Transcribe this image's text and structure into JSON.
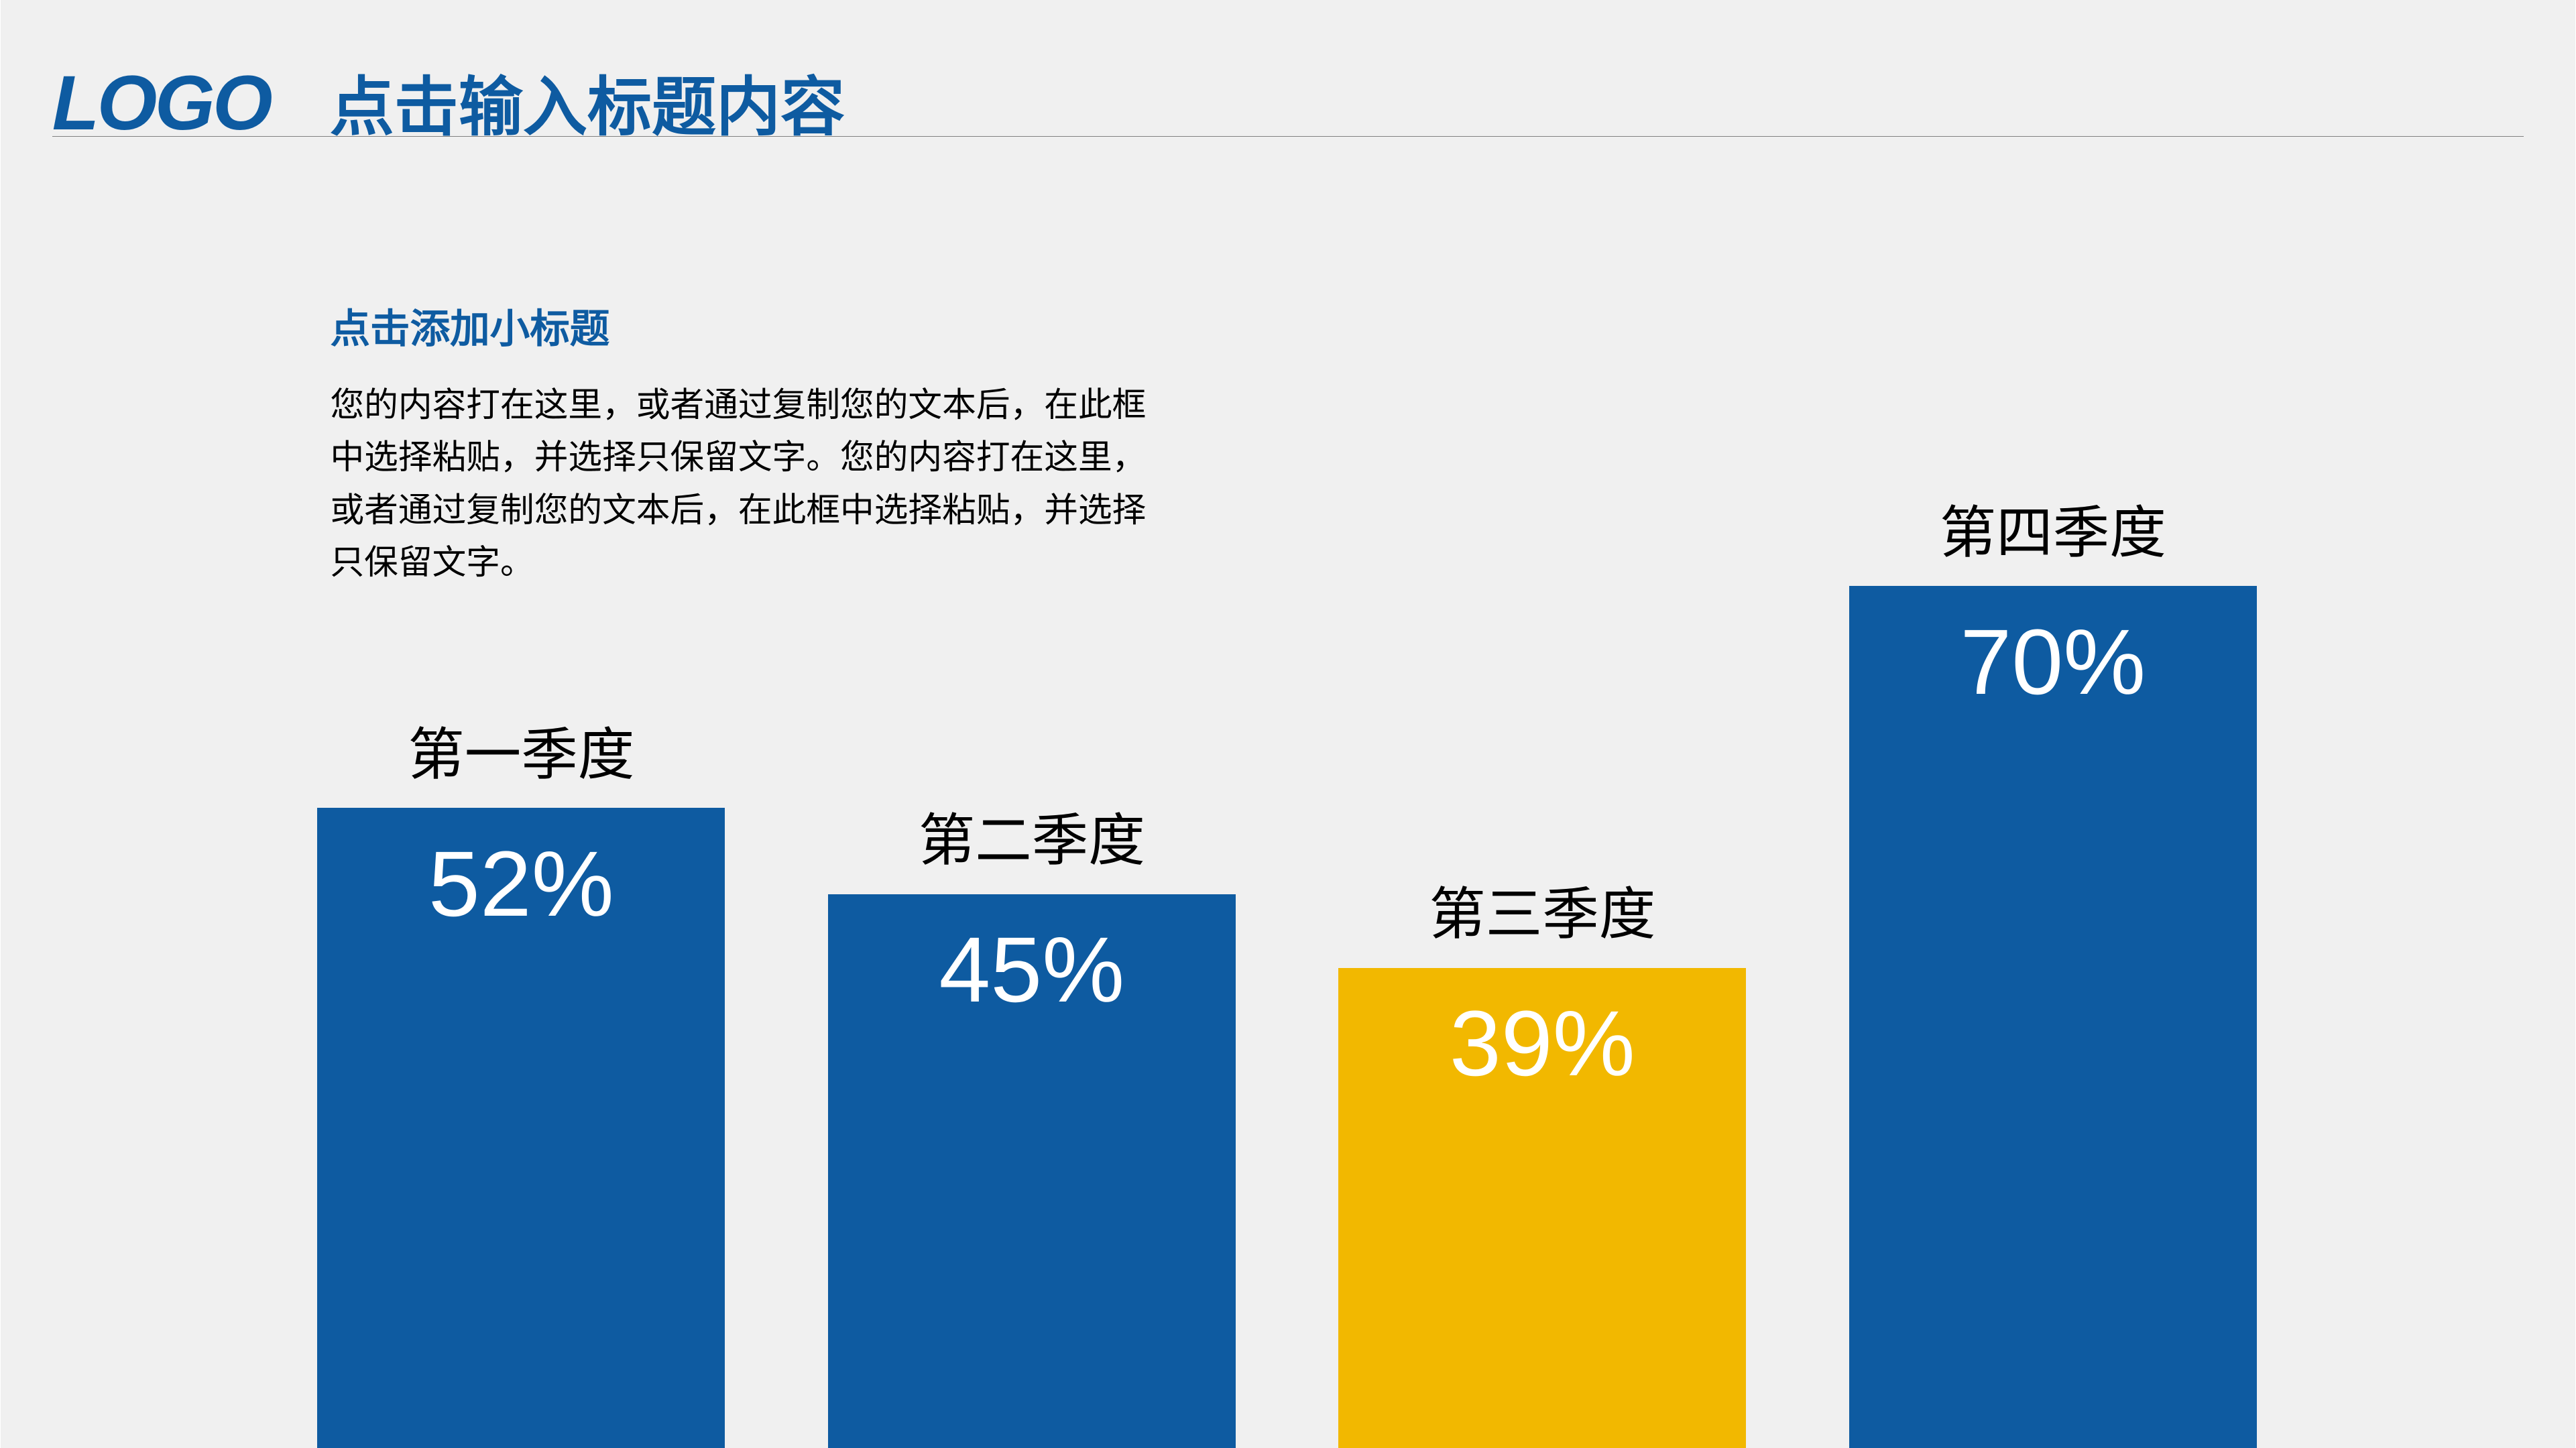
{
  "header": {
    "logo_text": "LOGO",
    "logo_color": "#0e5ba1",
    "logo_fontsize_vw": 3.0,
    "title": "点击输入标题内容",
    "title_color": "#0e5ba1",
    "title_fontsize_vw": 2.5,
    "divider_color": "#808080"
  },
  "subtitle_section": {
    "subtitle": "点击添加小标题",
    "subtitle_color": "#0e5ba1",
    "subtitle_fontsize_vw": 1.55,
    "body": "您的内容打在这里，或者通过复制您的文本后，在此框中选择粘贴，并选择只保留文字。您的内容打在这里，或者通过复制您的文本后，在此框中选择粘贴，并选择只保留文字。",
    "body_fontsize_vw": 1.32,
    "body_color": "#000000"
  },
  "chart": {
    "type": "bar",
    "background_color": "#f0f0f0",
    "label_fontsize_vw": 2.2,
    "label_color": "#000000",
    "value_fontsize_vw": 3.6,
    "value_color": "#ffffff",
    "bar_width_pct": 21,
    "bar_gap_pct": 5.3,
    "max_height_pct": 85,
    "height_per_percent": 1.214,
    "bars": [
      {
        "label": "第一季度",
        "value": 52,
        "value_text": "52%",
        "color": "#0e5ba1"
      },
      {
        "label": "第二季度",
        "value": 45,
        "value_text": "45%",
        "color": "#0e5ba1"
      },
      {
        "label": "第三季度",
        "value": 39,
        "value_text": "39%",
        "color": "#f2b800"
      },
      {
        "label": "第四季度",
        "value": 70,
        "value_text": "70%",
        "color": "#0e5ba1"
      }
    ]
  }
}
